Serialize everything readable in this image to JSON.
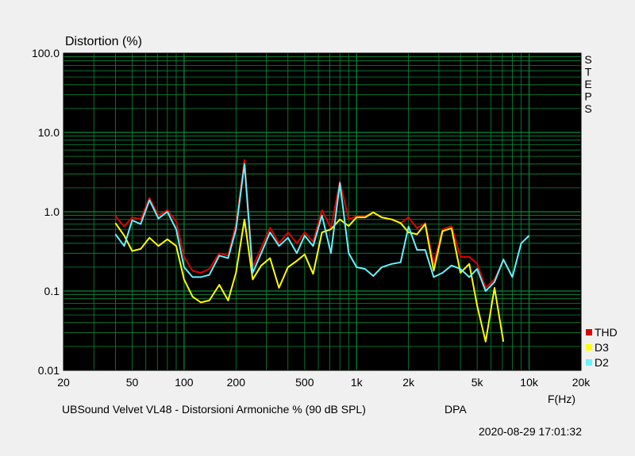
{
  "chart_data": {
    "type": "line",
    "title": "Distortion (%)",
    "xlabel": "F(Hz)",
    "ylabel": "Distortion (%)",
    "x_scale": "log",
    "y_scale": "log",
    "xlim": [
      20,
      20000
    ],
    "ylim": [
      0.01,
      100
    ],
    "grid": true,
    "background": "#000000",
    "grid_color": "#0a8a3a",
    "legend_position": "bottom-right",
    "x_ticks": [
      {
        "value": 20,
        "label": "20"
      },
      {
        "value": 50,
        "label": "50"
      },
      {
        "value": 100,
        "label": "100"
      },
      {
        "value": 200,
        "label": "200"
      },
      {
        "value": 500,
        "label": "500"
      },
      {
        "value": 1000,
        "label": "1k"
      },
      {
        "value": 2000,
        "label": "2k"
      },
      {
        "value": 5000,
        "label": "5k"
      },
      {
        "value": 10000,
        "label": "10k"
      },
      {
        "value": 20000,
        "label": "20k"
      }
    ],
    "y_ticks": [
      {
        "value": 100,
        "label": "100.0"
      },
      {
        "value": 10,
        "label": "10.0"
      },
      {
        "value": 1,
        "label": "1.0"
      },
      {
        "value": 0.1,
        "label": "0.1"
      },
      {
        "value": 0.01,
        "label": "0.01"
      }
    ],
    "series": [
      {
        "name": "THD",
        "color": "#e00000",
        "x": [
          40,
          45,
          50,
          56,
          63,
          71,
          80,
          90,
          100,
          112,
          125,
          140,
          160,
          180,
          200,
          224,
          250,
          280,
          315,
          355,
          400,
          450,
          500,
          560,
          630,
          710,
          800,
          900,
          1000,
          1120,
          1250,
          1400,
          1600,
          1800,
          2000,
          2240,
          2500,
          2800,
          3150,
          3550,
          4000,
          4500,
          5000,
          5600,
          6300,
          7100
        ],
        "y": [
          0.88,
          0.65,
          0.85,
          0.8,
          1.5,
          0.9,
          1.05,
          0.75,
          0.27,
          0.18,
          0.17,
          0.19,
          0.3,
          0.28,
          0.7,
          4.5,
          0.2,
          0.35,
          0.63,
          0.4,
          0.55,
          0.4,
          0.55,
          0.42,
          1.05,
          0.62,
          2.4,
          0.8,
          0.88,
          0.88,
          0.98,
          0.85,
          0.8,
          0.72,
          0.85,
          0.62,
          0.72,
          0.22,
          0.6,
          0.66,
          0.27,
          0.27,
          0.22,
          0.11,
          0.14,
          0.24
        ]
      },
      {
        "name": "D3",
        "color": "#ffff00",
        "x": [
          40,
          45,
          50,
          56,
          63,
          71,
          80,
          90,
          100,
          112,
          125,
          140,
          160,
          180,
          200,
          224,
          250,
          280,
          315,
          355,
          400,
          450,
          500,
          560,
          630,
          710,
          800,
          900,
          1000,
          1120,
          1250,
          1400,
          1600,
          1800,
          2000,
          2240,
          2500,
          2800,
          3150,
          3550,
          4000,
          4500,
          5000,
          5600,
          6300,
          7100
        ],
        "y": [
          0.72,
          0.5,
          0.32,
          0.34,
          0.47,
          0.37,
          0.45,
          0.37,
          0.14,
          0.085,
          0.072,
          0.076,
          0.12,
          0.076,
          0.17,
          0.8,
          0.14,
          0.21,
          0.26,
          0.11,
          0.2,
          0.24,
          0.29,
          0.165,
          0.55,
          0.6,
          0.8,
          0.66,
          0.85,
          0.85,
          0.98,
          0.85,
          0.8,
          0.72,
          0.55,
          0.52,
          0.7,
          0.18,
          0.57,
          0.62,
          0.17,
          0.22,
          0.065,
          0.023,
          0.11,
          0.023
        ]
      },
      {
        "name": "D2",
        "color": "#66f2ff",
        "x": [
          40,
          45,
          50,
          56,
          63,
          71,
          80,
          90,
          100,
          112,
          125,
          140,
          160,
          180,
          200,
          224,
          250,
          280,
          315,
          355,
          400,
          450,
          500,
          560,
          630,
          710,
          800,
          900,
          1000,
          1120,
          1250,
          1400,
          1600,
          1800,
          2000,
          2240,
          2500,
          2800,
          3150,
          3550,
          4000,
          4500,
          5000,
          5600,
          6300,
          7100,
          8000,
          9000,
          10000
        ],
        "y": [
          0.52,
          0.37,
          0.78,
          0.7,
          1.4,
          0.82,
          1.0,
          0.6,
          0.2,
          0.15,
          0.15,
          0.16,
          0.28,
          0.26,
          0.6,
          4.0,
          0.17,
          0.3,
          0.55,
          0.37,
          0.47,
          0.3,
          0.5,
          0.37,
          0.9,
          0.3,
          2.3,
          0.3,
          0.2,
          0.19,
          0.155,
          0.2,
          0.22,
          0.23,
          0.65,
          0.33,
          0.33,
          0.15,
          0.17,
          0.21,
          0.19,
          0.15,
          0.19,
          0.1,
          0.13,
          0.25,
          0.15,
          0.4,
          0.5
        ]
      }
    ]
  },
  "side_label": "STEPS",
  "caption": "UBSound Velvet VL48 - Distorsioni Armoniche % (90 dB SPL)",
  "mic": "DPA",
  "timestamp": "2020-08-29 17:01:32"
}
